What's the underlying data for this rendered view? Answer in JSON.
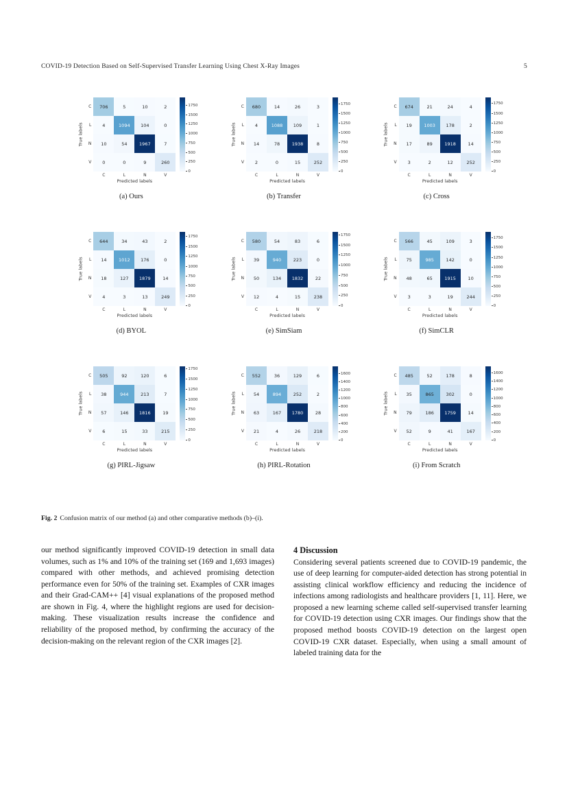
{
  "page": {
    "header": {
      "running_title": "COVID-19 Detection Based on Self-Supervised Transfer Learning Using Chest X-Ray Images",
      "page_number": "5"
    },
    "figure": {
      "caption_label": "Fig. 2",
      "caption_text": "Confusion matrix of our method (a) and other comparative methods (b)–(i)."
    },
    "body": {
      "left_column": "our method significantly improved COVID-19 detection in small data volumes, such as 1% and 10% of the training set (169 and 1,693 images) compared with other methods, and achieved promising detection performance even for 50% of the training set. Examples of CXR images and their Grad-CAM++ [4] visual explanations of the proposed method are shown in Fig. 4, where the highlight regions are used for decision-making. These visualization results increase the confidence and reliability of the proposed method, by confirming the accuracy of the decision-making on the relevant region of the CXR images [2].",
      "discussion_heading": "4 Discussion",
      "right_column": "Considering several patients screened due to COVID-19 pandemic, the use of deep learning for computer-aided detection has strong potential in assisting clinical workflow efficiency and reducing the incidence of infections among radiologists and healthcare providers [1, 11]. Here, we proposed a new learning scheme called self-supervised transfer learning for COVID-19 detection using CXR images. Our findings show that the proposed method boosts COVID-19 detection on the largest open COVID-19 CXR dataset. Especially, when using a small amount of labeled training data for the"
    }
  },
  "chart_data": [
    {
      "type": "heatmap",
      "label": "(a) Ours",
      "method": "Ours",
      "x_categories": [
        "C",
        "L",
        "N",
        "V"
      ],
      "y_categories": [
        "C",
        "L",
        "N",
        "V"
      ],
      "xlabel": "Predicted labels",
      "ylabel": "True labels",
      "values": [
        [
          706,
          5,
          10,
          2
        ],
        [
          4,
          1094,
          104,
          0
        ],
        [
          10,
          54,
          1967,
          7
        ],
        [
          0,
          0,
          9,
          260
        ]
      ],
      "colorbar_ticks": [
        1750,
        1500,
        1250,
        1000,
        750,
        500,
        250,
        0
      ],
      "colormap": "Blues"
    },
    {
      "type": "heatmap",
      "label": "(b) Transfer",
      "method": "Transfer",
      "x_categories": [
        "C",
        "L",
        "N",
        "V"
      ],
      "y_categories": [
        "C",
        "L",
        "N",
        "V"
      ],
      "xlabel": "Predicted labels",
      "ylabel": "True labels",
      "values": [
        [
          680,
          14,
          26,
          3
        ],
        [
          4,
          1088,
          109,
          1
        ],
        [
          14,
          78,
          1938,
          8
        ],
        [
          2,
          0,
          15,
          252
        ]
      ],
      "colorbar_ticks": [
        1750,
        1500,
        1250,
        1000,
        750,
        500,
        250,
        0
      ],
      "colormap": "Blues"
    },
    {
      "type": "heatmap",
      "label": "(c) Cross",
      "method": "Cross",
      "x_categories": [
        "C",
        "L",
        "N",
        "V"
      ],
      "y_categories": [
        "C",
        "L",
        "N",
        "V"
      ],
      "xlabel": "Predicted labels",
      "ylabel": "True labels",
      "values": [
        [
          674,
          21,
          24,
          4
        ],
        [
          19,
          1003,
          178,
          2
        ],
        [
          17,
          89,
          1918,
          14
        ],
        [
          3,
          2,
          12,
          252
        ]
      ],
      "colorbar_ticks": [
        1750,
        1500,
        1250,
        1000,
        750,
        500,
        250,
        0
      ],
      "colormap": "Blues"
    },
    {
      "type": "heatmap",
      "label": "(d) BYOL",
      "method": "BYOL",
      "x_categories": [
        "C",
        "L",
        "N",
        "V"
      ],
      "y_categories": [
        "C",
        "L",
        "N",
        "V"
      ],
      "xlabel": "Predicted labels",
      "ylabel": "True labels",
      "values": [
        [
          644,
          34,
          43,
          2
        ],
        [
          14,
          1012,
          176,
          0
        ],
        [
          18,
          127,
          1879,
          14
        ],
        [
          4,
          3,
          13,
          249
        ]
      ],
      "colorbar_ticks": [
        1750,
        1500,
        1250,
        1000,
        750,
        500,
        250,
        0
      ],
      "colormap": "Blues"
    },
    {
      "type": "heatmap",
      "label": "(e) SimSiam",
      "method": "SimSiam",
      "x_categories": [
        "C",
        "L",
        "N",
        "V"
      ],
      "y_categories": [
        "C",
        "L",
        "N",
        "V"
      ],
      "xlabel": "Predicted labels",
      "ylabel": "True labels",
      "values": [
        [
          580,
          54,
          83,
          6
        ],
        [
          39,
          940,
          223,
          0
        ],
        [
          50,
          134,
          1832,
          22
        ],
        [
          12,
          4,
          15,
          238
        ]
      ],
      "colorbar_ticks": [
        1750,
        1500,
        1250,
        1000,
        750,
        500,
        250,
        0
      ],
      "colormap": "Blues"
    },
    {
      "type": "heatmap",
      "label": "(f) SimCLR",
      "method": "SimCLR",
      "x_categories": [
        "C",
        "L",
        "N",
        "V"
      ],
      "y_categories": [
        "C",
        "L",
        "N",
        "V"
      ],
      "xlabel": "Predicted labels",
      "ylabel": "True labels",
      "values": [
        [
          566,
          45,
          109,
          3
        ],
        [
          75,
          985,
          142,
          0
        ],
        [
          48,
          65,
          1915,
          10
        ],
        [
          3,
          3,
          19,
          244
        ]
      ],
      "colorbar_ticks": [
        1750,
        1500,
        1250,
        1000,
        750,
        500,
        250,
        0
      ],
      "colormap": "Blues"
    },
    {
      "type": "heatmap",
      "label": "(g) PIRL-Jigsaw",
      "method": "PIRL-Jigsaw",
      "x_categories": [
        "C",
        "L",
        "N",
        "V"
      ],
      "y_categories": [
        "C",
        "L",
        "N",
        "V"
      ],
      "xlabel": "Predicted labels",
      "ylabel": "True labels",
      "values": [
        [
          505,
          92,
          120,
          6
        ],
        [
          38,
          944,
          213,
          7
        ],
        [
          57,
          146,
          1816,
          19
        ],
        [
          6,
          15,
          33,
          215
        ]
      ],
      "colorbar_ticks": [
        1750,
        1500,
        1250,
        1000,
        750,
        500,
        250,
        0
      ],
      "colormap": "Blues"
    },
    {
      "type": "heatmap",
      "label": "(h) PIRL-Rotation",
      "method": "PIRL-Rotation",
      "x_categories": [
        "C",
        "L",
        "N",
        "V"
      ],
      "y_categories": [
        "C",
        "L",
        "N",
        "V"
      ],
      "xlabel": "Predicted labels",
      "ylabel": "True labels",
      "values": [
        [
          552,
          36,
          129,
          6
        ],
        [
          54,
          894,
          252,
          2
        ],
        [
          63,
          167,
          1780,
          28
        ],
        [
          21,
          4,
          26,
          218
        ]
      ],
      "colorbar_ticks": [
        1600,
        1400,
        1200,
        1000,
        800,
        600,
        400,
        200,
        0
      ],
      "colormap": "Blues"
    },
    {
      "type": "heatmap",
      "label": "(i) From Scratch",
      "method": "From Scratch",
      "x_categories": [
        "C",
        "L",
        "N",
        "V"
      ],
      "y_categories": [
        "C",
        "L",
        "N",
        "V"
      ],
      "xlabel": "Predicted labels",
      "ylabel": "True labels",
      "values": [
        [
          485,
          52,
          178,
          8
        ],
        [
          35,
          865,
          302,
          0
        ],
        [
          79,
          186,
          1759,
          14
        ],
        [
          52,
          9,
          41,
          167
        ]
      ],
      "colorbar_ticks": [
        1600,
        1400,
        1200,
        1000,
        800,
        600,
        400,
        200,
        0
      ],
      "colormap": "Blues"
    }
  ]
}
